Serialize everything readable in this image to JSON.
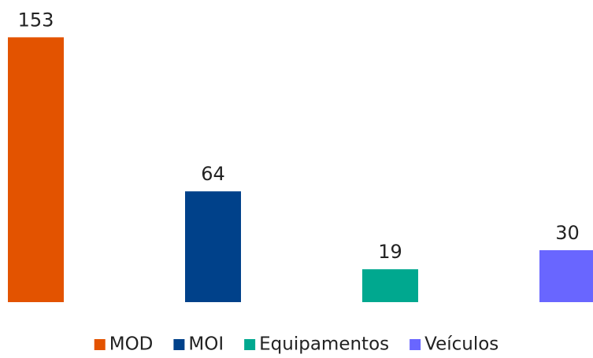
{
  "chart_data": {
    "type": "bar",
    "series": [
      {
        "name": "MOD",
        "color": "#e35300",
        "values": [
          153
        ]
      },
      {
        "name": "MOI",
        "color": "#00418a",
        "values": [
          64
        ]
      },
      {
        "name": "Equipamentos",
        "color": "#00a88f",
        "values": [
          19
        ]
      },
      {
        "name": "Veículos",
        "color": "#6966ff",
        "values": [
          30
        ]
      }
    ],
    "legend": "bottom"
  }
}
